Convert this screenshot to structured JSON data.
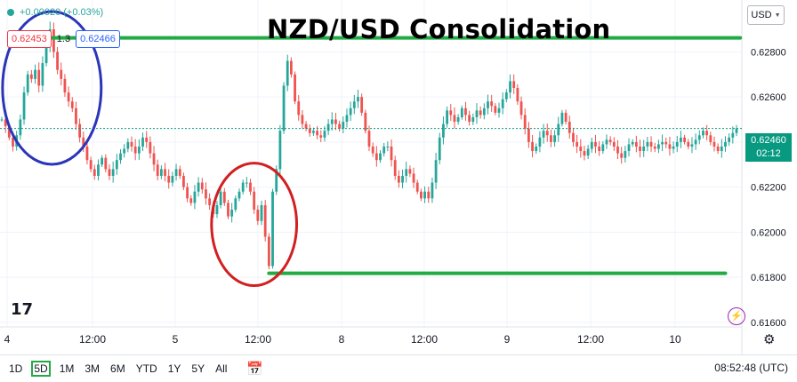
{
  "header": {
    "title": "NZD/USD Consolidation",
    "change_text": "+0.00020 (+0.03%)",
    "sell_price": "0.62453",
    "spread": "1.3",
    "buy_price": "0.62466",
    "currency": "USD",
    "last_price": "0.62460",
    "countdown": "02:12"
  },
  "toolbar": {
    "ranges": [
      "1D",
      "5D",
      "1M",
      "3M",
      "6M",
      "YTD",
      "1Y",
      "5Y",
      "All"
    ],
    "active_range": "5D",
    "clock": "08:52:48 (UTC)"
  },
  "colors": {
    "up": "#26a69a",
    "down": "#ef5350",
    "level_line": "#22aa44",
    "blue_circle": "#2a35b8",
    "red_circle": "#d21f1f",
    "last_price_bg": "#089981"
  },
  "chart_data": {
    "type": "line",
    "title": "NZD/USD Consolidation",
    "x_ticks": [
      "4",
      "12:00",
      "5",
      "12:00",
      "8",
      "12:00",
      "9",
      "12:00",
      "10"
    ],
    "y_ticks": [
      "0.62800",
      "0.62600",
      "0.62400",
      "0.62200",
      "0.62000",
      "0.61800",
      "0.61600"
    ],
    "ylim": [
      0.6158,
      0.6303
    ],
    "last_price": 0.6246,
    "levels": [
      {
        "name": "resistance",
        "value": 0.62862,
        "from_index": 13,
        "to_index": 199
      },
      {
        "name": "support",
        "value": 0.61818,
        "from_index": 72,
        "to_index": 195
      }
    ],
    "series": [
      {
        "values": [
          0.625,
          0.6247,
          0.6242,
          0.6238,
          0.6243,
          0.625,
          0.6262,
          0.627,
          0.6268,
          0.6272,
          0.6265,
          0.6275,
          0.6283,
          0.629,
          0.628,
          0.6272,
          0.6268,
          0.6262,
          0.6258,
          0.6255,
          0.6248,
          0.6242,
          0.6238,
          0.6232,
          0.6228,
          0.6225,
          0.623,
          0.6233,
          0.6228,
          0.6225,
          0.6228,
          0.6232,
          0.6235,
          0.6237,
          0.624,
          0.6238,
          0.6235,
          0.6238,
          0.6242,
          0.624,
          0.6235,
          0.623,
          0.6225,
          0.6228,
          0.6225,
          0.6222,
          0.6225,
          0.6228,
          0.6225,
          0.622,
          0.6215,
          0.6213,
          0.6218,
          0.6222,
          0.6219,
          0.6215,
          0.6212,
          0.6208,
          0.6212,
          0.6218,
          0.6213,
          0.6207,
          0.621,
          0.6215,
          0.6218,
          0.6222,
          0.6222,
          0.6218,
          0.621,
          0.6205,
          0.6212,
          0.6198,
          0.6185,
          0.6218,
          0.6228,
          0.6245,
          0.6265,
          0.6276,
          0.627,
          0.6258,
          0.6252,
          0.6248,
          0.6246,
          0.6244,
          0.6245,
          0.6243,
          0.6242,
          0.6245,
          0.6248,
          0.625,
          0.6248,
          0.6246,
          0.6249,
          0.6252,
          0.6255,
          0.6258,
          0.626,
          0.6253,
          0.6245,
          0.6238,
          0.6235,
          0.6232,
          0.6235,
          0.6238,
          0.6238,
          0.6232,
          0.6225,
          0.6222,
          0.6225,
          0.6228,
          0.6226,
          0.6222,
          0.6218,
          0.6215,
          0.6218,
          0.6215,
          0.6222,
          0.6232,
          0.6242,
          0.6248,
          0.6254,
          0.6252,
          0.6249,
          0.6251,
          0.6255,
          0.6252,
          0.6249,
          0.6251,
          0.6254,
          0.6252,
          0.6255,
          0.6258,
          0.6256,
          0.6253,
          0.6255,
          0.6259,
          0.6262,
          0.6267,
          0.6264,
          0.6258,
          0.6252,
          0.6246,
          0.624,
          0.6236,
          0.6238,
          0.6242,
          0.6245,
          0.6243,
          0.624,
          0.6243,
          0.6248,
          0.6253,
          0.6249,
          0.6244,
          0.624,
          0.6238,
          0.6236,
          0.6234,
          0.6237,
          0.624,
          0.6238,
          0.6236,
          0.6239,
          0.6241,
          0.624,
          0.6238,
          0.6235,
          0.6233,
          0.6236,
          0.6239,
          0.624,
          0.6238,
          0.6236,
          0.6238,
          0.624,
          0.6238,
          0.6237,
          0.6239,
          0.624,
          0.6239,
          0.6237,
          0.6238,
          0.624,
          0.6242,
          0.624,
          0.6238,
          0.6239,
          0.6241,
          0.6243,
          0.6245,
          0.6243,
          0.624,
          0.6238,
          0.6236,
          0.6238,
          0.624,
          0.6242,
          0.6244,
          0.6246
        ]
      }
    ]
  }
}
